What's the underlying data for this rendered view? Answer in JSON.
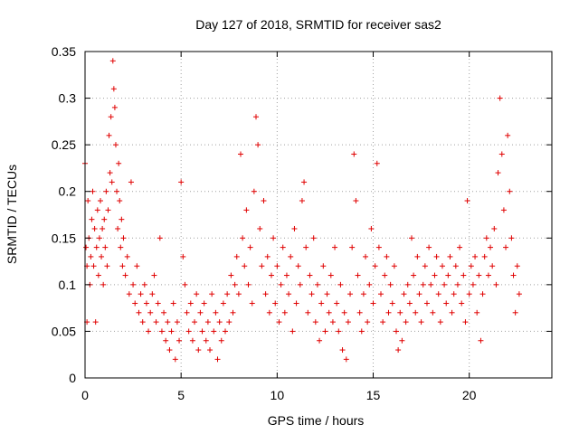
{
  "chart_data": {
    "type": "scatter",
    "title": "Day 127 of 2018, SRMTID for receiver sas2",
    "xlabel": "GPS time / hours",
    "ylabel": "SRMTID / TECUs",
    "xlim": [
      0,
      24.3
    ],
    "ylim": [
      0,
      0.35
    ],
    "xticks": [
      0,
      5,
      10,
      15,
      20
    ],
    "xtick_labels": [
      "0",
      "5",
      "10",
      "15",
      "20"
    ],
    "yticks": [
      0,
      0.05,
      0.1,
      0.15,
      0.2,
      0.25,
      0.3,
      0.35
    ],
    "ytick_labels": [
      "0",
      "0.05",
      "0.1",
      "0.15",
      "0.2",
      "0.25",
      "0.3",
      "0.35"
    ],
    "grid": true,
    "marker": "+",
    "series": [
      {
        "name": "sas2",
        "color": "#e00000",
        "points": [
          [
            0.0,
            0.23
          ],
          [
            0.05,
            0.14
          ],
          [
            0.1,
            0.12
          ],
          [
            0.1,
            0.06
          ],
          [
            0.15,
            0.19
          ],
          [
            0.2,
            0.15
          ],
          [
            0.25,
            0.1
          ],
          [
            0.3,
            0.13
          ],
          [
            0.35,
            0.17
          ],
          [
            0.4,
            0.2
          ],
          [
            0.45,
            0.12
          ],
          [
            0.5,
            0.16
          ],
          [
            0.55,
            0.06
          ],
          [
            0.6,
            0.14
          ],
          [
            0.65,
            0.18
          ],
          [
            0.7,
            0.11
          ],
          [
            0.75,
            0.15
          ],
          [
            0.8,
            0.19
          ],
          [
            0.85,
            0.13
          ],
          [
            0.9,
            0.16
          ],
          [
            0.95,
            0.1
          ],
          [
            1.0,
            0.17
          ],
          [
            1.05,
            0.14
          ],
          [
            1.1,
            0.2
          ],
          [
            1.15,
            0.12
          ],
          [
            1.2,
            0.18
          ],
          [
            1.25,
            0.26
          ],
          [
            1.3,
            0.22
          ],
          [
            1.35,
            0.28
          ],
          [
            1.4,
            0.21
          ],
          [
            1.45,
            0.34
          ],
          [
            1.5,
            0.31
          ],
          [
            1.55,
            0.29
          ],
          [
            1.6,
            0.25
          ],
          [
            1.65,
            0.2
          ],
          [
            1.7,
            0.16
          ],
          [
            1.75,
            0.23
          ],
          [
            1.8,
            0.19
          ],
          [
            1.85,
            0.14
          ],
          [
            1.9,
            0.17
          ],
          [
            1.95,
            0.12
          ],
          [
            2.0,
            0.15
          ],
          [
            2.1,
            0.11
          ],
          [
            2.2,
            0.13
          ],
          [
            2.3,
            0.09
          ],
          [
            2.4,
            0.21
          ],
          [
            2.5,
            0.1
          ],
          [
            2.6,
            0.08
          ],
          [
            2.7,
            0.12
          ],
          [
            2.8,
            0.07
          ],
          [
            2.9,
            0.09
          ],
          [
            3.0,
            0.06
          ],
          [
            3.1,
            0.1
          ],
          [
            3.2,
            0.08
          ],
          [
            3.3,
            0.05
          ],
          [
            3.4,
            0.07
          ],
          [
            3.5,
            0.09
          ],
          [
            3.6,
            0.11
          ],
          [
            3.7,
            0.06
          ],
          [
            3.8,
            0.08
          ],
          [
            3.9,
            0.15
          ],
          [
            4.0,
            0.05
          ],
          [
            4.1,
            0.07
          ],
          [
            4.2,
            0.04
          ],
          [
            4.3,
            0.06
          ],
          [
            4.4,
            0.03
          ],
          [
            4.5,
            0.05
          ],
          [
            4.6,
            0.08
          ],
          [
            4.7,
            0.02
          ],
          [
            4.8,
            0.06
          ],
          [
            4.9,
            0.04
          ],
          [
            5.0,
            0.21
          ],
          [
            5.1,
            0.13
          ],
          [
            5.2,
            0.1
          ],
          [
            5.3,
            0.07
          ],
          [
            5.4,
            0.05
          ],
          [
            5.5,
            0.08
          ],
          [
            5.6,
            0.04
          ],
          [
            5.7,
            0.06
          ],
          [
            5.8,
            0.09
          ],
          [
            5.9,
            0.03
          ],
          [
            6.0,
            0.07
          ],
          [
            6.1,
            0.05
          ],
          [
            6.2,
            0.08
          ],
          [
            6.3,
            0.04
          ],
          [
            6.4,
            0.06
          ],
          [
            6.5,
            0.03
          ],
          [
            6.6,
            0.09
          ],
          [
            6.7,
            0.05
          ],
          [
            6.8,
            0.07
          ],
          [
            6.9,
            0.02
          ],
          [
            7.0,
            0.06
          ],
          [
            7.1,
            0.04
          ],
          [
            7.2,
            0.08
          ],
          [
            7.3,
            0.05
          ],
          [
            7.4,
            0.09
          ],
          [
            7.5,
            0.06
          ],
          [
            7.6,
            0.11
          ],
          [
            7.7,
            0.07
          ],
          [
            7.8,
            0.1
          ],
          [
            7.9,
            0.13
          ],
          [
            8.0,
            0.09
          ],
          [
            8.1,
            0.24
          ],
          [
            8.2,
            0.15
          ],
          [
            8.3,
            0.12
          ],
          [
            8.4,
            0.18
          ],
          [
            8.5,
            0.1
          ],
          [
            8.6,
            0.14
          ],
          [
            8.7,
            0.08
          ],
          [
            8.8,
            0.2
          ],
          [
            8.9,
            0.28
          ],
          [
            9.0,
            0.25
          ],
          [
            9.1,
            0.16
          ],
          [
            9.2,
            0.12
          ],
          [
            9.3,
            0.19
          ],
          [
            9.4,
            0.09
          ],
          [
            9.5,
            0.13
          ],
          [
            9.6,
            0.07
          ],
          [
            9.7,
            0.11
          ],
          [
            9.8,
            0.15
          ],
          [
            9.9,
            0.08
          ],
          [
            10.0,
            0.12
          ],
          [
            10.1,
            0.06
          ],
          [
            10.2,
            0.1
          ],
          [
            10.3,
            0.14
          ],
          [
            10.4,
            0.07
          ],
          [
            10.5,
            0.11
          ],
          [
            10.6,
            0.09
          ],
          [
            10.7,
            0.13
          ],
          [
            10.8,
            0.05
          ],
          [
            10.9,
            0.16
          ],
          [
            11.0,
            0.08
          ],
          [
            11.1,
            0.12
          ],
          [
            11.2,
            0.1
          ],
          [
            11.3,
            0.19
          ],
          [
            11.4,
            0.21
          ],
          [
            11.5,
            0.14
          ],
          [
            11.6,
            0.07
          ],
          [
            11.7,
            0.11
          ],
          [
            11.8,
            0.09
          ],
          [
            11.9,
            0.15
          ],
          [
            12.0,
            0.06
          ],
          [
            12.1,
            0.1
          ],
          [
            12.2,
            0.04
          ],
          [
            12.3,
            0.08
          ],
          [
            12.4,
            0.12
          ],
          [
            12.5,
            0.05
          ],
          [
            12.6,
            0.09
          ],
          [
            12.7,
            0.07
          ],
          [
            12.8,
            0.11
          ],
          [
            12.9,
            0.06
          ],
          [
            13.0,
            0.14
          ],
          [
            13.1,
            0.08
          ],
          [
            13.2,
            0.05
          ],
          [
            13.3,
            0.1
          ],
          [
            13.4,
            0.03
          ],
          [
            13.5,
            0.07
          ],
          [
            13.6,
            0.02
          ],
          [
            13.7,
            0.06
          ],
          [
            13.8,
            0.09
          ],
          [
            13.9,
            0.14
          ],
          [
            14.0,
            0.24
          ],
          [
            14.1,
            0.19
          ],
          [
            14.2,
            0.11
          ],
          [
            14.3,
            0.07
          ],
          [
            14.4,
            0.05
          ],
          [
            14.5,
            0.09
          ],
          [
            14.6,
            0.13
          ],
          [
            14.7,
            0.06
          ],
          [
            14.8,
            0.1
          ],
          [
            14.9,
            0.16
          ],
          [
            15.0,
            0.08
          ],
          [
            15.1,
            0.12
          ],
          [
            15.2,
            0.23
          ],
          [
            15.3,
            0.14
          ],
          [
            15.4,
            0.09
          ],
          [
            15.5,
            0.06
          ],
          [
            15.6,
            0.11
          ],
          [
            15.7,
            0.13
          ],
          [
            15.8,
            0.07
          ],
          [
            15.9,
            0.1
          ],
          [
            16.0,
            0.08
          ],
          [
            16.1,
            0.12
          ],
          [
            16.2,
            0.05
          ],
          [
            16.3,
            0.03
          ],
          [
            16.4,
            0.07
          ],
          [
            16.5,
            0.04
          ],
          [
            16.6,
            0.09
          ],
          [
            16.7,
            0.06
          ],
          [
            16.8,
            0.1
          ],
          [
            16.9,
            0.08
          ],
          [
            17.0,
            0.15
          ],
          [
            17.1,
            0.11
          ],
          [
            17.2,
            0.07
          ],
          [
            17.3,
            0.13
          ],
          [
            17.4,
            0.09
          ],
          [
            17.5,
            0.06
          ],
          [
            17.6,
            0.1
          ],
          [
            17.7,
            0.12
          ],
          [
            17.8,
            0.08
          ],
          [
            17.9,
            0.14
          ],
          [
            18.0,
            0.1
          ],
          [
            18.1,
            0.07
          ],
          [
            18.2,
            0.11
          ],
          [
            18.3,
            0.13
          ],
          [
            18.4,
            0.09
          ],
          [
            18.5,
            0.06
          ],
          [
            18.6,
            0.12
          ],
          [
            18.7,
            0.1
          ],
          [
            18.8,
            0.08
          ],
          [
            18.9,
            0.11
          ],
          [
            19.0,
            0.13
          ],
          [
            19.1,
            0.07
          ],
          [
            19.2,
            0.09
          ],
          [
            19.3,
            0.12
          ],
          [
            19.4,
            0.1
          ],
          [
            19.5,
            0.14
          ],
          [
            19.6,
            0.08
          ],
          [
            19.7,
            0.11
          ],
          [
            19.8,
            0.06
          ],
          [
            19.9,
            0.19
          ],
          [
            20.0,
            0.09
          ],
          [
            20.1,
            0.12
          ],
          [
            20.2,
            0.1
          ],
          [
            20.3,
            0.13
          ],
          [
            20.4,
            0.07
          ],
          [
            20.5,
            0.11
          ],
          [
            20.6,
            0.04
          ],
          [
            20.7,
            0.09
          ],
          [
            20.8,
            0.13
          ],
          [
            20.9,
            0.15
          ],
          [
            21.0,
            0.11
          ],
          [
            21.1,
            0.14
          ],
          [
            21.2,
            0.12
          ],
          [
            21.3,
            0.16
          ],
          [
            21.4,
            0.1
          ],
          [
            21.5,
            0.22
          ],
          [
            21.6,
            0.3
          ],
          [
            21.7,
            0.24
          ],
          [
            21.8,
            0.18
          ],
          [
            21.9,
            0.14
          ],
          [
            22.0,
            0.26
          ],
          [
            22.1,
            0.2
          ],
          [
            22.2,
            0.15
          ],
          [
            22.3,
            0.11
          ],
          [
            22.4,
            0.07
          ],
          [
            22.5,
            0.12
          ],
          [
            22.6,
            0.09
          ]
        ]
      }
    ]
  }
}
